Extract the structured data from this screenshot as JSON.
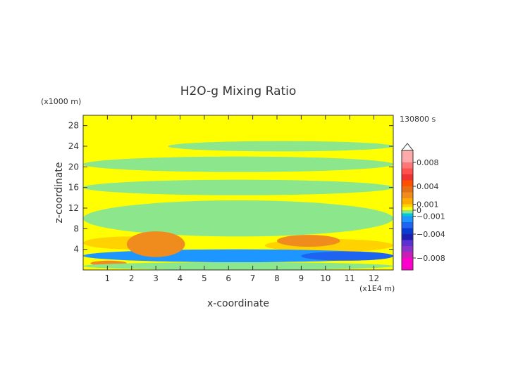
{
  "chart_data": {
    "type": "heatmap",
    "title": "H2O-g Mixing Ratio",
    "xlabel": "x-coordinate",
    "ylabel": "z-coordinate",
    "x_unit": "(x1E4 m)",
    "y_unit": "(x1000 m)",
    "time_label": "130800 s",
    "xlim": [
      0,
      12.8
    ],
    "ylim": [
      0,
      30
    ],
    "x_ticks": [
      1,
      2,
      3,
      4,
      5,
      6,
      7,
      8,
      9,
      10,
      11,
      12
    ],
    "y_ticks": [
      4,
      8,
      12,
      16,
      20,
      24,
      28
    ],
    "grid": false,
    "colorbar": {
      "placement": "right",
      "range": [
        -0.01,
        0.01
      ],
      "extend": "max",
      "tick_labels": [
        {
          "value": 0.008,
          "label": "0.008"
        },
        {
          "value": 0.004,
          "label": "0.004"
        },
        {
          "value": 0.001,
          "label": "0.001"
        },
        {
          "value": 0,
          "label": "0"
        },
        {
          "value": -0.001,
          "label": "−0.001"
        },
        {
          "value": -0.004,
          "label": "−0.004"
        },
        {
          "value": -0.008,
          "label": "−0.008"
        }
      ],
      "levels": [
        {
          "from": -0.01,
          "to": -0.008,
          "color": "#ff00cc"
        },
        {
          "from": -0.008,
          "to": -0.007,
          "color": "#c81eb4"
        },
        {
          "from": -0.007,
          "to": -0.006,
          "color": "#8c32c8"
        },
        {
          "from": -0.006,
          "to": -0.005,
          "color": "#5a32d2"
        },
        {
          "from": -0.005,
          "to": -0.004,
          "color": "#1e1eb4"
        },
        {
          "from": -0.004,
          "to": -0.003,
          "color": "#0a3cd2"
        },
        {
          "from": -0.003,
          "to": -0.002,
          "color": "#1e64f0"
        },
        {
          "from": -0.002,
          "to": -0.001,
          "color": "#1e96ff"
        },
        {
          "from": -0.001,
          "to": -0.0005,
          "color": "#00c8d2"
        },
        {
          "from": -0.0005,
          "to": 0,
          "color": "#8ce68c"
        },
        {
          "from": 0,
          "to": 0.0005,
          "color": "#ffff00"
        },
        {
          "from": 0.0005,
          "to": 0.001,
          "color": "#ffd200"
        },
        {
          "from": 0.001,
          "to": 0.002,
          "color": "#ffaa00"
        },
        {
          "from": 0.002,
          "to": 0.003,
          "color": "#f08c1e"
        },
        {
          "from": 0.003,
          "to": 0.004,
          "color": "#e66e14"
        },
        {
          "from": 0.004,
          "to": 0.005,
          "color": "#ff5000"
        },
        {
          "from": 0.005,
          "to": 0.006,
          "color": "#f03232"
        },
        {
          "from": 0.006,
          "to": 0.007,
          "color": "#ff5050"
        },
        {
          "from": 0.007,
          "to": 0.008,
          "color": "#ff7878"
        },
        {
          "from": 0.008,
          "to": 0.01,
          "color": "#ffaaaa"
        }
      ]
    },
    "background_value": 0.0003,
    "field_regions": [
      {
        "name": "mid-level band",
        "value": -0.0003,
        "x": [
          0,
          12.8
        ],
        "z": [
          6.5,
          13.5
        ]
      },
      {
        "name": "upper band 1",
        "value": -0.0003,
        "x": [
          0,
          12.8
        ],
        "z": [
          14.5,
          17.5
        ]
      },
      {
        "name": "upper band 2",
        "value": -0.0003,
        "x": [
          0,
          12.8
        ],
        "z": [
          19,
          22
        ]
      },
      {
        "name": "upper band 3",
        "value": -0.0003,
        "x": [
          3.5,
          12.8
        ],
        "z": [
          23,
          25
        ]
      },
      {
        "name": "low-level moist layer west",
        "value": 0.0007,
        "x": [
          0,
          4
        ],
        "z": [
          4,
          6.5
        ]
      },
      {
        "name": "low-level moist layer east",
        "value": 0.0007,
        "x": [
          7.5,
          12.8
        ],
        "z": [
          3.5,
          6
        ]
      },
      {
        "name": "boundary-layer dry band",
        "value": -0.0015,
        "x": [
          0,
          12.8
        ],
        "z": [
          1.5,
          4
        ]
      },
      {
        "name": "dry core east",
        "value": -0.0025,
        "x": [
          9,
          12.8
        ],
        "z": [
          1.8,
          3.6
        ]
      },
      {
        "name": "moist plume x2-3",
        "value": 0.0025,
        "x": [
          1.8,
          4.2
        ],
        "z": [
          2.5,
          7.5
        ]
      },
      {
        "name": "moist plume x8-10",
        "value": 0.0022,
        "x": [
          8,
          10.6
        ],
        "z": [
          4.5,
          6.8
        ]
      },
      {
        "name": "surface moist pocket",
        "value": 0.0022,
        "x": [
          0.3,
          1.8
        ],
        "z": [
          0.8,
          1.8
        ]
      },
      {
        "name": "surface mixed layer",
        "value": -0.0004,
        "x": [
          0,
          12.8
        ],
        "z": [
          0,
          1.5
        ]
      }
    ]
  }
}
